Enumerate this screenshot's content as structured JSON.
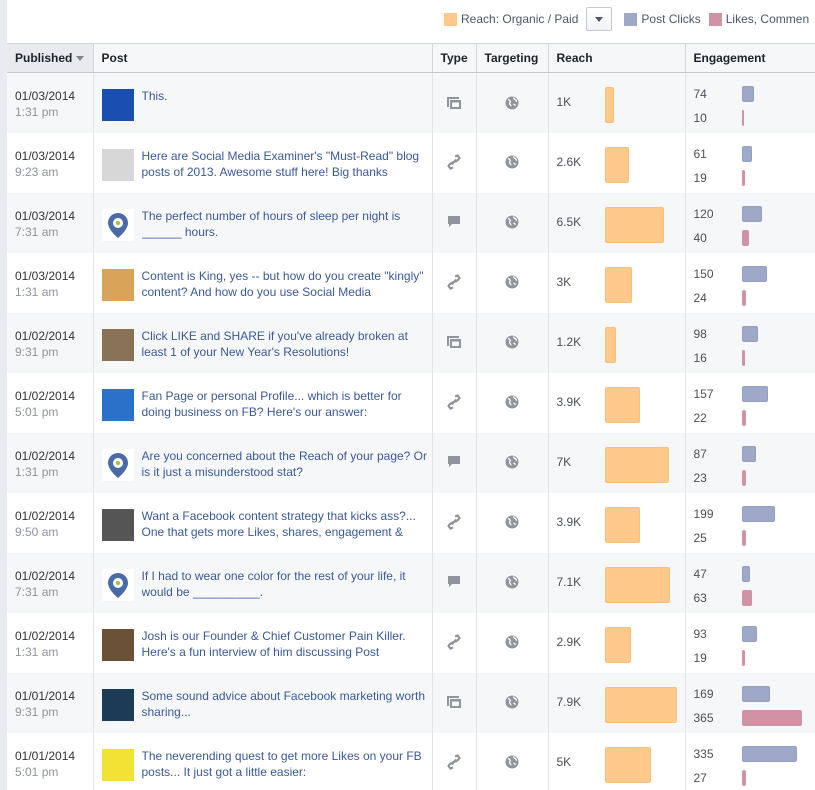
{
  "legend": {
    "reach_label": "Reach: Organic / Paid",
    "reach_color": "#ffc98c",
    "clicks_label": "Post Clicks",
    "clicks_color": "#9ea9c8",
    "likes_label": "Likes, Commen",
    "likes_color": "#d292a6",
    "dropdown_icon": "chevron-down-icon"
  },
  "columns": {
    "published": "Published",
    "post": "Post",
    "type": "Type",
    "targeting": "Targeting",
    "reach": "Reach",
    "engagement": "Engagement"
  },
  "sort": {
    "column": "published",
    "direction": "desc"
  },
  "rows": [
    {
      "date": "01/03/2014",
      "time": "1:31 pm",
      "text": "This.",
      "type": "photo",
      "targeting": "public",
      "reach": "1K",
      "reach_value": 1000,
      "clicks": "74",
      "likes": "10",
      "thumb": "#1a4fb0"
    },
    {
      "date": "01/03/2014",
      "time": "9:23 am",
      "text": "Here are Social Media Examiner's \"Must-Read\" blog posts of 2013. Awesome stuff here! Big thanks",
      "type": "link",
      "targeting": "public",
      "reach": "2.6K",
      "reach_value": 2600,
      "clicks": "61",
      "likes": "19",
      "thumb": "#d7d7d7"
    },
    {
      "date": "01/03/2014",
      "time": "7:31 am",
      "text": "The perfect number of hours of sleep per night is ______ hours.",
      "type": "status",
      "targeting": "public",
      "reach": "6.5K",
      "reach_value": 6500,
      "clicks": "120",
      "likes": "40",
      "thumb": "logo"
    },
    {
      "date": "01/03/2014",
      "time": "1:31 am",
      "text": "Content is King, yes -- but how do you create \"kingly\" content? And how do you use Social Media",
      "type": "link",
      "targeting": "public",
      "reach": "3K",
      "reach_value": 3000,
      "clicks": "150",
      "likes": "24",
      "thumb": "#d9a45a"
    },
    {
      "date": "01/02/2014",
      "time": "9:31 pm",
      "text": "Click LIKE and SHARE if you've already broken at least 1 of your New Year's Resolutions!",
      "type": "photo",
      "targeting": "public",
      "reach": "1.2K",
      "reach_value": 1200,
      "clicks": "98",
      "likes": "16",
      "thumb": "#8a7256"
    },
    {
      "date": "01/02/2014",
      "time": "5:01 pm",
      "text": "Fan Page or personal Profile... which is better for doing business on FB? Here's our answer:",
      "type": "link",
      "targeting": "public",
      "reach": "3.9K",
      "reach_value": 3900,
      "clicks": "157",
      "likes": "22",
      "thumb": "#2a72c9"
    },
    {
      "date": "01/02/2014",
      "time": "1:31 pm",
      "text": "Are you concerned about the Reach of your page? Or is it just a misunderstood stat?",
      "type": "status",
      "targeting": "public",
      "reach": "7K",
      "reach_value": 7000,
      "clicks": "87",
      "likes": "23",
      "thumb": "logo"
    },
    {
      "date": "01/02/2014",
      "time": "9:50 am",
      "text": "Want a Facebook content strategy that kicks ass?... One that gets more Likes, shares, engagement &",
      "type": "link",
      "targeting": "public",
      "reach": "3.9K",
      "reach_value": 3900,
      "clicks": "199",
      "likes": "25",
      "thumb": "#555555"
    },
    {
      "date": "01/02/2014",
      "time": "7:31 am",
      "text": "If I had to wear one color for the rest of your life, it would be __________.",
      "type": "status",
      "targeting": "public",
      "reach": "7.1K",
      "reach_value": 7100,
      "clicks": "47",
      "likes": "63",
      "thumb": "logo"
    },
    {
      "date": "01/02/2014",
      "time": "1:31 am",
      "text": "Josh is our Founder & Chief Customer Pain Killer. Here's a fun interview of him discussing Post",
      "type": "link",
      "targeting": "public",
      "reach": "2.9K",
      "reach_value": 2900,
      "clicks": "93",
      "likes": "19",
      "thumb": "#6b5236"
    },
    {
      "date": "01/01/2014",
      "time": "9:31 pm",
      "text": "Some sound advice about Facebook marketing worth sharing...",
      "type": "photo",
      "targeting": "public",
      "reach": "7.9K",
      "reach_value": 7900,
      "clicks": "169",
      "likes": "365",
      "thumb": "#1c3b57"
    },
    {
      "date": "01/01/2014",
      "time": "5:01 pm",
      "text": "The neverending quest to get more Likes on your FB posts... It just got a little easier:",
      "type": "link",
      "targeting": "public",
      "reach": "5K",
      "reach_value": 5000,
      "clicks": "335",
      "likes": "27",
      "thumb": "#f2e233"
    }
  ]
}
